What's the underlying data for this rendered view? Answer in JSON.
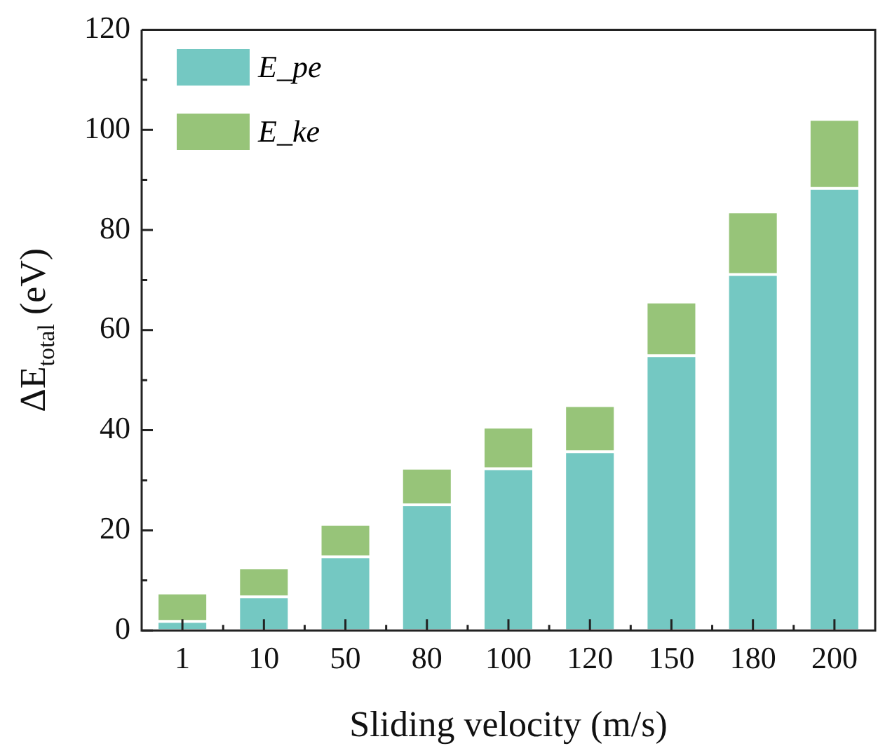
{
  "chart_data": {
    "type": "bar",
    "stacked": true,
    "xlabel": "Sliding velocity (m/s)",
    "ylabel": "ΔE$_{total}$ (eV)",
    "categories": [
      "1",
      "10",
      "50",
      "80",
      "100",
      "120",
      "150",
      "180",
      "200"
    ],
    "series": [
      {
        "name": "E_pe",
        "color": "#74c8c2",
        "values": [
          1.8,
          6.7,
          14.7,
          25.1,
          32.3,
          35.7,
          54.9,
          71.1,
          88.3
        ]
      },
      {
        "name": "E_ke",
        "color": "#97c479",
        "values": [
          5.7,
          5.8,
          6.5,
          7.3,
          8.3,
          9.2,
          10.7,
          12.5,
          13.8
        ]
      }
    ],
    "ylim": [
      0,
      120
    ],
    "yticks": [
      0,
      {
        "value": 10,
        "label": null
      },
      20,
      {
        "value": 30,
        "label": null
      },
      40,
      {
        "value": 50,
        "label": null
      },
      60,
      {
        "value": 70,
        "label": null
      },
      80,
      {
        "value": 90,
        "label": null
      },
      100,
      {
        "value": 110,
        "label": null
      },
      120
    ],
    "grid": false,
    "legend": "top left"
  }
}
